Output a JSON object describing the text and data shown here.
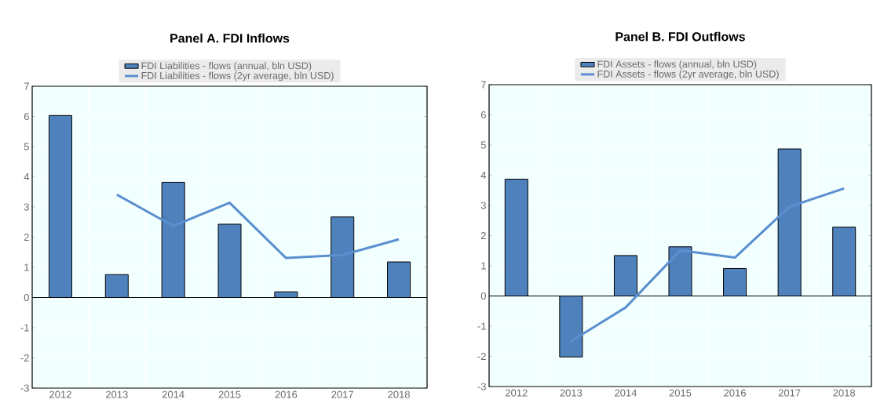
{
  "chart_data": [
    {
      "type": "bar",
      "title": "Panel A. FDI Inflows",
      "categories": [
        "2012",
        "2013",
        "2014",
        "2015",
        "2016",
        "2017",
        "2018"
      ],
      "ylim": [
        -3,
        7
      ],
      "yticks": [
        -3,
        -2,
        -1,
        0,
        1,
        2,
        3,
        4,
        5,
        6,
        7
      ],
      "grid": true,
      "legend": "top",
      "series": [
        {
          "name": "FDI Liabilities - flows (annual, bln USD)",
          "color": "#4f81bd",
          "values": [
            6.03,
            0.76,
            3.82,
            2.43,
            0.19,
            2.67,
            1.18
          ]
        },
        {
          "type": "line",
          "name": "FDI Liabilities - flows (2yr average, bln USD)",
          "color": "#5a8fd0",
          "values": [
            null,
            3.41,
            2.37,
            3.14,
            1.31,
            1.41,
            1.93
          ]
        }
      ]
    },
    {
      "type": "bar",
      "title": "Panel B. FDI Outflows",
      "categories": [
        "2012",
        "2013",
        "2014",
        "2015",
        "2016",
        "2017",
        "2018"
      ],
      "ylim": [
        -3,
        7
      ],
      "yticks": [
        -3,
        -2,
        -1,
        0,
        1,
        2,
        3,
        4,
        5,
        6,
        7
      ],
      "grid": true,
      "legend": "top",
      "series": [
        {
          "name": "FDI Assets - flows (annual, bln USD)",
          "color": "#4f81bd",
          "values": [
            3.87,
            -2.02,
            1.34,
            1.63,
            0.91,
            4.87,
            2.28
          ]
        },
        {
          "type": "line",
          "name": "FDI Assets - flows (2yr average, bln USD)",
          "color": "#5a8fd0",
          "values": [
            null,
            -1.5,
            -0.38,
            1.51,
            1.27,
            2.96,
            3.56
          ]
        }
      ]
    }
  ]
}
